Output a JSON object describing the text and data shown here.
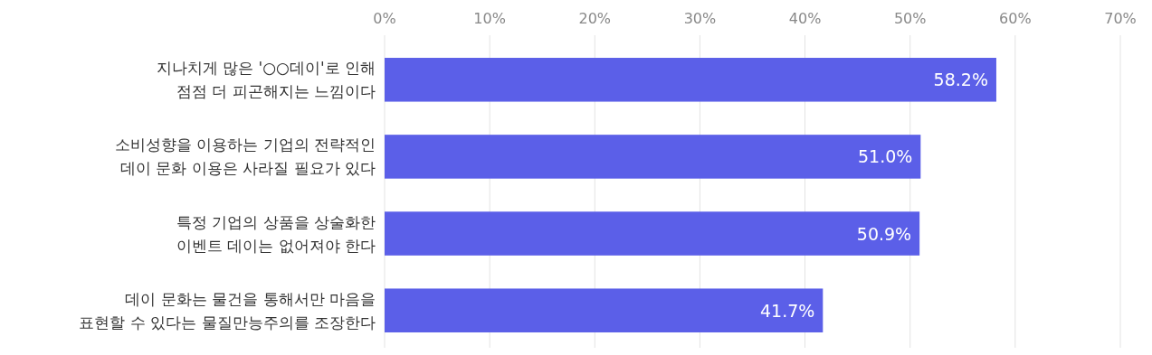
{
  "chart_data": {
    "type": "bar",
    "orientation": "horizontal",
    "categories": [
      "지나치게 많은 '○○데이'로 인해\n점점 더 피곤해지는 느낌이다",
      "소비성향을 이용하는 기업의 전략적인\n데이 문화 이용은 사라질 필요가 있다",
      "특정 기업의 상품을 상술화한\n이벤트 데이는 없어져야 한다",
      "데이 문화는 물건을 통해서만 마음을\n표현할 수 있다는 물질만능주의를 조장한다"
    ],
    "values": [
      58.2,
      51.0,
      50.9,
      41.7
    ],
    "value_labels": [
      "58.2%",
      "51.0%",
      "50.9%",
      "41.7%"
    ],
    "color": "#5b5fe8",
    "xlim": [
      0,
      70
    ],
    "xticks": [
      {
        "value": 0,
        "label": "0%"
      },
      {
        "value": 10,
        "label": "10%"
      },
      {
        "value": 20,
        "label": "20%"
      },
      {
        "value": 30,
        "label": "30%"
      },
      {
        "value": 40,
        "label": "40%"
      },
      {
        "value": 50,
        "label": "50%"
      },
      {
        "value": 60,
        "label": "60%"
      },
      {
        "value": 70,
        "label": "70%"
      }
    ],
    "grid": "x"
  }
}
